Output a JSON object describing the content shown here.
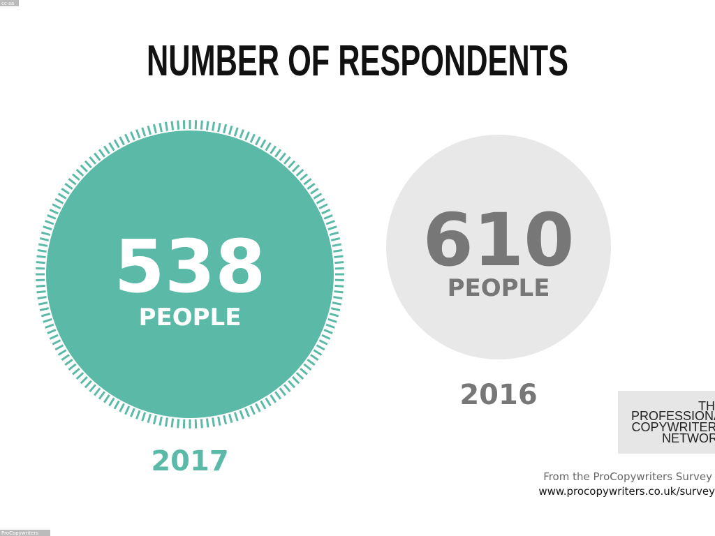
{
  "title": "NUMBER OF RESPONDENTS",
  "current": {
    "number": "538",
    "unit": "PEOPLE",
    "year": "2017"
  },
  "previous": {
    "number": "610",
    "unit": "PEOPLE",
    "year": "2016"
  },
  "logo": {
    "lines": [
      "THE",
      "PROFESSIONAL",
      "COPYWRITERS'",
      "NETWORK"
    ]
  },
  "source": {
    "line1": "From the ProCopywriters Survey",
    "line2": "www.procopywriters.co.uk/survey"
  },
  "corner_top": "cc-sa",
  "corner_bottom": "ProCopywriters"
}
